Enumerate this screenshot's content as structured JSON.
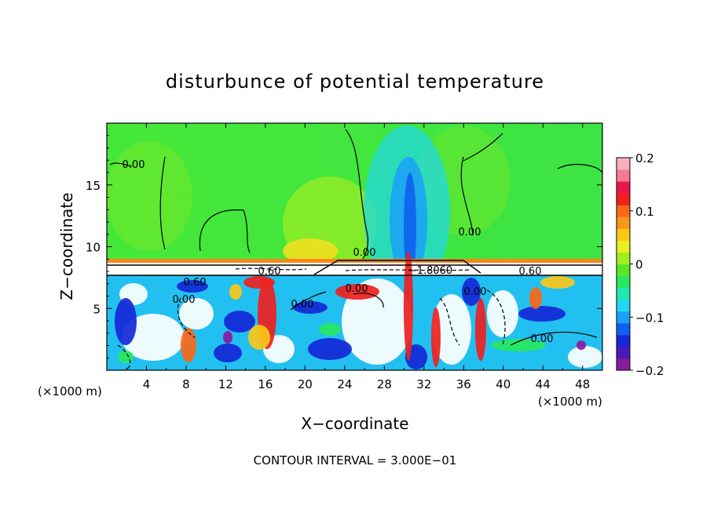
{
  "chart_data": {
    "type": "heatmap",
    "title": "disturbunce of potential temperature",
    "xlabel": "X−coordinate",
    "ylabel": "Z−coordinate",
    "x_unit_left": "(×1000 m)",
    "x_unit_right": "(×1000 m)",
    "xlim": [
      0,
      50
    ],
    "ylim": [
      0,
      20
    ],
    "x_ticks": [
      4,
      8,
      12,
      16,
      20,
      24,
      28,
      32,
      36,
      40,
      44,
      48
    ],
    "y_ticks": [
      5,
      10,
      15
    ],
    "colorbar": {
      "range": [
        -0.2,
        0.2
      ],
      "tick_values": [
        0.2,
        0.1,
        0,
        -0.1,
        -0.2
      ],
      "tick_labels": [
        "0.2",
        "0.1",
        "0",
        "−0.1",
        "−0.2"
      ],
      "colors": [
        "#8a1a9e",
        "#4a1ab8",
        "#1428d8",
        "#1060f0",
        "#1aa0f8",
        "#22d8f0",
        "#20e8b0",
        "#28e860",
        "#58e828",
        "#a0ee20",
        "#e8f020",
        "#f8c818",
        "#f89818",
        "#f86818",
        "#f02020",
        "#e81848",
        "#f87890",
        "#f8b0c0"
      ]
    },
    "contour_labels": [
      "0.00",
      "0.00",
      "0.00",
      "0.60",
      "0.60",
      "0.00",
      "0.00",
      "0.00",
      "−1.8060",
      "0.00",
      "0.60",
      "0.00"
    ],
    "contour_interval_text": "CONTOUR INTERVAL = 3.000E−01",
    "grid": false
  }
}
